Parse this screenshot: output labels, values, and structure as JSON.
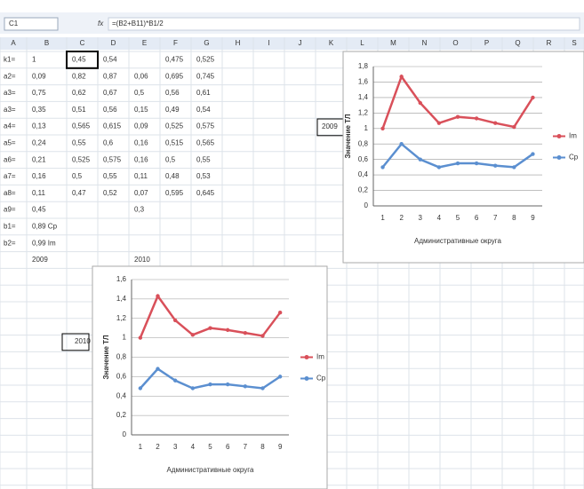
{
  "sheet": {
    "name_box": "C1",
    "formula": "=(B2+B11)*B1/2",
    "columns": [
      "A",
      "B",
      "C",
      "D",
      "E",
      "F",
      "G",
      "H",
      "I",
      "J",
      "K",
      "L",
      "M",
      "N",
      "O",
      "P",
      "Q",
      "R",
      "S"
    ],
    "rows": [
      [
        "k1=",
        "1",
        "0,45",
        "0,54",
        null,
        "0,475",
        "0,525"
      ],
      [
        "a2=",
        "0,09",
        "0,82",
        "0,87",
        "0,06",
        "0,695",
        "0,745"
      ],
      [
        "a3=",
        "0,75",
        "0,62",
        "0,67",
        "0,5",
        "0,56",
        "0,61"
      ],
      [
        "a3=",
        "0,35",
        "0,51",
        "0,56",
        "0,15",
        "0,49",
        "0,54"
      ],
      [
        "a4=",
        "0,13",
        "0,565",
        "0,615",
        "0,09",
        "0,525",
        "0,575"
      ],
      [
        "a5=",
        "0,24",
        "0,55",
        "0,6",
        "0,16",
        "0,515",
        "0,565"
      ],
      [
        "a6=",
        "0,21",
        "0,525",
        "0,575",
        "0,16",
        "0,5",
        "0,55"
      ],
      [
        "a7=",
        "0,16",
        "0,5",
        "0,55",
        "0,11",
        "0,48",
        "0,53"
      ],
      [
        "a8=",
        "0,11",
        "0,47",
        "0,52",
        "0,07",
        "0,595",
        "0,645"
      ],
      [
        "a9=",
        "0,45",
        null,
        null,
        "0,3",
        null,
        null
      ],
      [
        "b1=",
        "0,89 Cp",
        null,
        null,
        null,
        null,
        null
      ],
      [
        "b2=",
        "0,99 Im",
        null,
        null,
        null,
        null,
        null
      ],
      [
        null,
        "2009",
        null,
        null,
        "2010",
        null,
        null
      ]
    ],
    "label_2009": "2009",
    "label_2010": "2010"
  },
  "charts": [
    {
      "type": "line",
      "y_label": "Значение ТЛ",
      "x_label": "Административные округа",
      "categories": [
        1,
        2,
        3,
        4,
        5,
        6,
        7,
        8,
        9
      ],
      "ylim": [
        0,
        1.8
      ],
      "yticks": [
        0,
        {
          "value": 0.2,
          "label": "0,2"
        },
        {
          "value": 0.4,
          "label": "0,4"
        },
        {
          "value": 0.6,
          "label": "0,6"
        },
        {
          "value": 0.8,
          "label": "0,8"
        },
        1,
        {
          "value": 1.2,
          "label": "1,2"
        },
        {
          "value": 1.4,
          "label": "1,4"
        },
        {
          "value": 1.6,
          "label": "1,6"
        },
        {
          "value": 1.8,
          "label": "1,8"
        }
      ],
      "series": [
        {
          "name": "Im",
          "color": "#d9505a",
          "values": [
            1.0,
            1.67,
            1.33,
            1.07,
            1.15,
            1.13,
            1.07,
            1.02,
            1.4
          ]
        },
        {
          "name": "Cp",
          "color": "#5b8fd0",
          "values": [
            0.5,
            0.8,
            0.6,
            0.5,
            0.55,
            0.55,
            0.52,
            0.5,
            0.67
          ]
        }
      ]
    },
    {
      "type": "line",
      "y_label": "Значение ТЛ",
      "x_label": "Административные округа",
      "categories": [
        1,
        2,
        3,
        4,
        5,
        6,
        7,
        8,
        9
      ],
      "ylim": [
        0,
        1.6
      ],
      "yticks": [
        0,
        {
          "value": 0.2,
          "label": "0,2"
        },
        {
          "value": 0.4,
          "label": "0,4"
        },
        {
          "value": 0.6,
          "label": "0,6"
        },
        {
          "value": 0.8,
          "label": "0,8"
        },
        1,
        {
          "value": 1.2,
          "label": "1,2"
        },
        {
          "value": 1.4,
          "label": "1,4"
        },
        {
          "value": 1.6,
          "label": "1,6"
        }
      ],
      "series": [
        {
          "name": "Im",
          "color": "#d9505a",
          "values": [
            1.0,
            1.43,
            1.18,
            1.03,
            1.1,
            1.08,
            1.05,
            1.02,
            1.26
          ]
        },
        {
          "name": "Cp",
          "color": "#5b8fd0",
          "values": [
            0.48,
            0.68,
            0.56,
            0.48,
            0.52,
            0.52,
            0.5,
            0.48,
            0.6
          ]
        }
      ]
    }
  ]
}
